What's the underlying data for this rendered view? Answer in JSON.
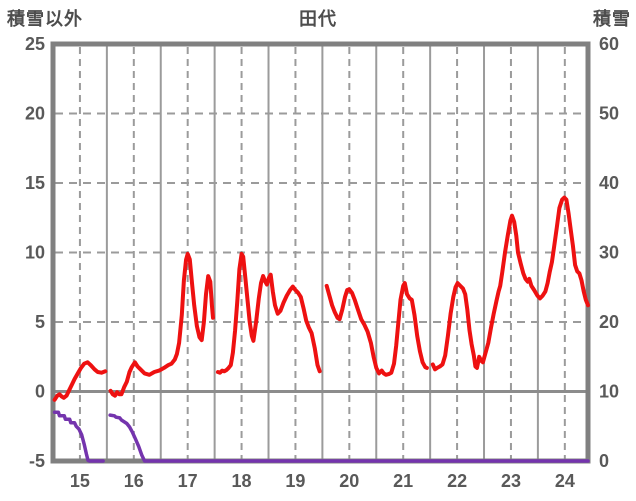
{
  "header": {
    "left_axis_title": "積雪以外",
    "chart_title": "田代",
    "right_axis_title": "積雪"
  },
  "chart_data": {
    "type": "line",
    "title": "田代",
    "x_axis": {
      "range": [
        14.5,
        24.43
      ],
      "tick_positions": [
        15,
        16,
        17,
        18,
        19,
        20,
        21,
        22,
        23,
        24
      ],
      "tick_labels": [
        "15",
        "16",
        "17",
        "18",
        "19",
        "20",
        "21",
        "22",
        "23",
        "24"
      ],
      "solid_gridlines": [
        15.5,
        16.5,
        17.5,
        18.5,
        19.5,
        20.5,
        21.5,
        22.5,
        23.5
      ]
    },
    "y_left": {
      "title": "積雪以外",
      "range": [
        -5,
        25
      ],
      "ticks": [
        25,
        20,
        15,
        10,
        5,
        0,
        -5
      ],
      "dashed_gridlines": [
        20,
        15,
        10,
        5
      ],
      "solid_gridlines": [
        0
      ]
    },
    "y_right": {
      "title": "積雪",
      "range": [
        0,
        60
      ],
      "ticks": [
        60,
        50,
        40,
        30,
        20,
        10,
        0
      ]
    },
    "series": [
      {
        "name": "left-axis-red-line",
        "axis": "left",
        "color": "#ee1111",
        "width": 4,
        "segments": [
          [
            [
              14.53,
              -0.6
            ],
            [
              14.58,
              -0.3
            ],
            [
              14.62,
              -0.2
            ],
            [
              14.66,
              -0.35
            ],
            [
              14.7,
              -0.45
            ],
            [
              14.75,
              -0.3
            ],
            [
              14.8,
              0.1
            ],
            [
              14.85,
              0.5
            ],
            [
              14.9,
              0.9
            ],
            [
              14.96,
              1.3
            ],
            [
              15.02,
              1.7
            ],
            [
              15.08,
              2.0
            ],
            [
              15.14,
              2.1
            ],
            [
              15.2,
              1.9
            ],
            [
              15.27,
              1.6
            ],
            [
              15.33,
              1.4
            ],
            [
              15.4,
              1.35
            ],
            [
              15.47,
              1.45
            ]
          ],
          [
            [
              15.57,
              0.05
            ],
            [
              15.61,
              -0.2
            ],
            [
              15.65,
              -0.3
            ],
            [
              15.69,
              -0.05
            ],
            [
              15.73,
              -0.2
            ],
            [
              15.77,
              -0.2
            ],
            [
              15.82,
              0.3
            ],
            [
              15.87,
              0.7
            ],
            [
              15.92,
              1.4
            ],
            [
              15.96,
              1.75
            ],
            [
              16.02,
              2.1
            ],
            [
              16.07,
              1.8
            ],
            [
              16.11,
              1.65
            ],
            [
              16.2,
              1.3
            ],
            [
              16.29,
              1.2
            ],
            [
              16.38,
              1.4
            ],
            [
              16.47,
              1.5
            ],
            [
              16.56,
              1.7
            ],
            [
              16.64,
              1.9
            ],
            [
              16.7,
              2.0
            ],
            [
              16.76,
              2.3
            ],
            [
              16.8,
              2.7
            ],
            [
              16.84,
              3.5
            ],
            [
              16.89,
              5.5
            ],
            [
              16.93,
              8.0
            ],
            [
              16.97,
              9.5
            ],
            [
              17.0,
              9.9
            ],
            [
              17.04,
              9.5
            ],
            [
              17.08,
              7.8
            ],
            [
              17.12,
              6.2
            ],
            [
              17.17,
              4.7
            ],
            [
              17.22,
              3.9
            ],
            [
              17.26,
              3.7
            ],
            [
              17.3,
              5.0
            ],
            [
              17.34,
              7.0
            ],
            [
              17.38,
              8.3
            ],
            [
              17.42,
              7.9
            ],
            [
              17.45,
              6.2
            ],
            [
              17.47,
              5.3
            ]
          ],
          [
            [
              17.56,
              1.4
            ],
            [
              17.6,
              1.35
            ],
            [
              17.64,
              1.5
            ],
            [
              17.68,
              1.45
            ],
            [
              17.72,
              1.55
            ],
            [
              17.76,
              1.7
            ],
            [
              17.8,
              1.9
            ],
            [
              17.84,
              2.8
            ],
            [
              17.88,
              4.4
            ],
            [
              17.92,
              6.5
            ],
            [
              17.96,
              8.8
            ],
            [
              18.0,
              9.9
            ],
            [
              18.03,
              9.7
            ],
            [
              18.07,
              8.2
            ],
            [
              18.11,
              6.6
            ],
            [
              18.15,
              5.0
            ],
            [
              18.19,
              4.0
            ],
            [
              18.22,
              3.65
            ],
            [
              18.27,
              5.0
            ],
            [
              18.32,
              6.7
            ],
            [
              18.36,
              7.8
            ],
            [
              18.4,
              8.3
            ],
            [
              18.44,
              7.9
            ],
            [
              18.47,
              7.7
            ],
            [
              18.51,
              8.2
            ],
            [
              18.54,
              8.4
            ],
            [
              18.58,
              7.2
            ],
            [
              18.62,
              6.2
            ],
            [
              18.67,
              5.6
            ],
            [
              18.72,
              5.8
            ],
            [
              18.78,
              6.4
            ],
            [
              18.84,
              6.9
            ],
            [
              18.9,
              7.3
            ],
            [
              18.95,
              7.55
            ],
            [
              19.0,
              7.3
            ],
            [
              19.05,
              7.1
            ],
            [
              19.1,
              6.8
            ],
            [
              19.15,
              6.0
            ],
            [
              19.2,
              5.1
            ],
            [
              19.25,
              4.6
            ],
            [
              19.3,
              4.2
            ],
            [
              19.36,
              3.1
            ],
            [
              19.41,
              1.9
            ],
            [
              19.45,
              1.45
            ]
          ],
          [
            [
              19.58,
              7.6
            ],
            [
              19.63,
              6.9
            ],
            [
              19.68,
              6.2
            ],
            [
              19.73,
              5.7
            ],
            [
              19.78,
              5.3
            ],
            [
              19.82,
              5.2
            ],
            [
              19.87,
              5.9
            ],
            [
              19.92,
              6.8
            ],
            [
              19.96,
              7.3
            ],
            [
              20.0,
              7.35
            ],
            [
              20.05,
              7.1
            ],
            [
              20.1,
              6.6
            ],
            [
              20.16,
              5.9
            ],
            [
              20.22,
              5.2
            ],
            [
              20.28,
              4.8
            ],
            [
              20.34,
              4.3
            ],
            [
              20.4,
              3.5
            ],
            [
              20.45,
              2.5
            ],
            [
              20.5,
              1.7
            ],
            [
              20.55,
              1.3
            ],
            [
              20.6,
              1.5
            ],
            [
              20.64,
              1.3
            ],
            [
              20.68,
              1.2
            ],
            [
              20.73,
              1.25
            ],
            [
              20.78,
              1.35
            ],
            [
              20.83,
              2.0
            ],
            [
              20.87,
              3.3
            ],
            [
              20.91,
              5.0
            ],
            [
              20.95,
              6.6
            ],
            [
              21.0,
              7.6
            ],
            [
              21.03,
              7.8
            ],
            [
              21.07,
              7.0
            ],
            [
              21.12,
              6.7
            ],
            [
              21.16,
              6.6
            ],
            [
              21.21,
              5.5
            ],
            [
              21.26,
              4.0
            ],
            [
              21.31,
              2.9
            ],
            [
              21.36,
              2.1
            ],
            [
              21.41,
              1.75
            ],
            [
              21.44,
              1.7
            ]
          ],
          [
            [
              21.55,
              1.95
            ],
            [
              21.59,
              1.6
            ],
            [
              21.63,
              1.7
            ],
            [
              21.68,
              1.8
            ],
            [
              21.73,
              1.95
            ],
            [
              21.78,
              2.6
            ],
            [
              21.83,
              4.0
            ],
            [
              21.88,
              5.6
            ],
            [
              21.93,
              6.8
            ],
            [
              21.97,
              7.5
            ],
            [
              22.01,
              7.8
            ],
            [
              22.06,
              7.6
            ],
            [
              22.11,
              7.4
            ],
            [
              22.15,
              7.0
            ],
            [
              22.19,
              5.9
            ],
            [
              22.23,
              4.4
            ],
            [
              22.27,
              3.4
            ],
            [
              22.31,
              2.6
            ],
            [
              22.34,
              1.8
            ],
            [
              22.37,
              1.7
            ],
            [
              22.41,
              2.5
            ],
            [
              22.45,
              2.2
            ],
            [
              22.48,
              2.1
            ],
            [
              22.53,
              2.8
            ],
            [
              22.58,
              3.5
            ],
            [
              22.63,
              4.6
            ],
            [
              22.68,
              5.6
            ],
            [
              22.73,
              6.5
            ],
            [
              22.77,
              7.2
            ],
            [
              22.8,
              7.6
            ],
            [
              22.84,
              8.6
            ],
            [
              22.89,
              10.0
            ],
            [
              22.94,
              11.2
            ],
            [
              22.99,
              12.3
            ],
            [
              23.02,
              12.65
            ],
            [
              23.06,
              12.2
            ],
            [
              23.1,
              11.2
            ],
            [
              23.13,
              10.0
            ],
            [
              23.18,
              9.2
            ],
            [
              23.23,
              8.5
            ],
            [
              23.27,
              8.1
            ],
            [
              23.31,
              7.9
            ],
            [
              23.34,
              8.1
            ],
            [
              23.38,
              7.6
            ],
            [
              23.43,
              7.3
            ],
            [
              23.49,
              6.9
            ],
            [
              23.54,
              6.7
            ],
            [
              23.59,
              6.9
            ],
            [
              23.64,
              7.2
            ],
            [
              23.68,
              7.8
            ],
            [
              23.72,
              8.6
            ],
            [
              23.76,
              9.3
            ],
            [
              23.8,
              10.4
            ],
            [
              23.85,
              11.8
            ],
            [
              23.9,
              13.2
            ],
            [
              23.95,
              13.8
            ],
            [
              23.99,
              13.95
            ],
            [
              24.03,
              13.8
            ],
            [
              24.07,
              12.8
            ],
            [
              24.11,
              11.6
            ],
            [
              24.15,
              10.5
            ],
            [
              24.19,
              9.1
            ],
            [
              24.23,
              8.65
            ],
            [
              24.27,
              8.5
            ],
            [
              24.31,
              8.0
            ],
            [
              24.35,
              7.2
            ],
            [
              24.39,
              6.6
            ],
            [
              24.43,
              6.2
            ]
          ]
        ]
      },
      {
        "name": "right-axis-purple-line",
        "axis": "right",
        "color": "#7434ad",
        "width": 3.5,
        "segments": [
          [
            [
              14.53,
              7.0
            ],
            [
              14.6,
              7.0
            ],
            [
              14.62,
              6.5
            ],
            [
              14.71,
              6.5
            ],
            [
              14.73,
              6.0
            ],
            [
              14.81,
              6.0
            ],
            [
              14.83,
              5.5
            ],
            [
              14.9,
              5.5
            ],
            [
              14.93,
              5.0
            ],
            [
              14.98,
              4.6
            ],
            [
              15.03,
              3.8
            ],
            [
              15.08,
              2.4
            ],
            [
              15.12,
              1.0
            ],
            [
              15.15,
              0.1
            ],
            [
              15.18,
              0
            ],
            [
              15.43,
              0
            ]
          ],
          [
            [
              15.56,
              6.6
            ],
            [
              15.64,
              6.5
            ],
            [
              15.67,
              6.3
            ],
            [
              15.74,
              6.2
            ],
            [
              15.77,
              5.9
            ],
            [
              15.83,
              5.6
            ],
            [
              15.87,
              5.4
            ],
            [
              15.92,
              4.9
            ],
            [
              15.97,
              4.2
            ],
            [
              16.03,
              3.2
            ],
            [
              16.09,
              2.1
            ],
            [
              16.15,
              0.8
            ],
            [
              16.2,
              0
            ],
            [
              24.43,
              0
            ]
          ]
        ]
      }
    ],
    "colors": {
      "frame": "#808080",
      "grid": "#9b9b9b",
      "zero_line": "#8c8c8c",
      "tick_text": "#595959",
      "title_text": "#4d4d4d",
      "background": "#ffffff"
    },
    "legend": "none",
    "grid": "on"
  }
}
